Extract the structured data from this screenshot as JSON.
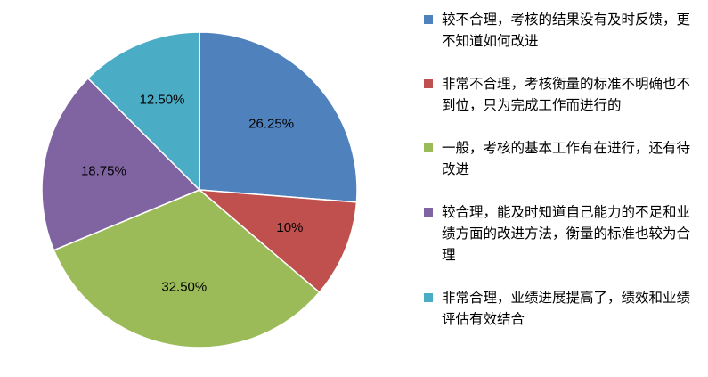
{
  "chart_data": {
    "type": "pie",
    "title": "",
    "slices": [
      {
        "label": "较不合理，考核的结果没有及时反馈，更不知道如何改进",
        "value": 26.25,
        "display": "26.25%",
        "color": "#4f81bd"
      },
      {
        "label": "非常不合理，考核衡量的标准不明确也不到位，只为完成工作而进行的",
        "value": 10,
        "display": "10%",
        "color": "#c0504d"
      },
      {
        "label": "一般，考核的基本工作有在进行，还有待改进",
        "value": 32.5,
        "display": "32.50%",
        "color": "#9bbb59"
      },
      {
        "label": "较合理，能及时知道自己能力的不足和业绩方面的改进方法，衡量的标准也较为合理",
        "value": 18.75,
        "display": "18.75%",
        "color": "#8064a2"
      },
      {
        "label": "非常合理，业绩进展提高了，绩效和业绩评估有效结合",
        "value": 12.5,
        "display": "12.50%",
        "color": "#4bacc6"
      }
    ],
    "start_angle": "12 o'clock",
    "direction": "clockwise",
    "legend": "right"
  }
}
